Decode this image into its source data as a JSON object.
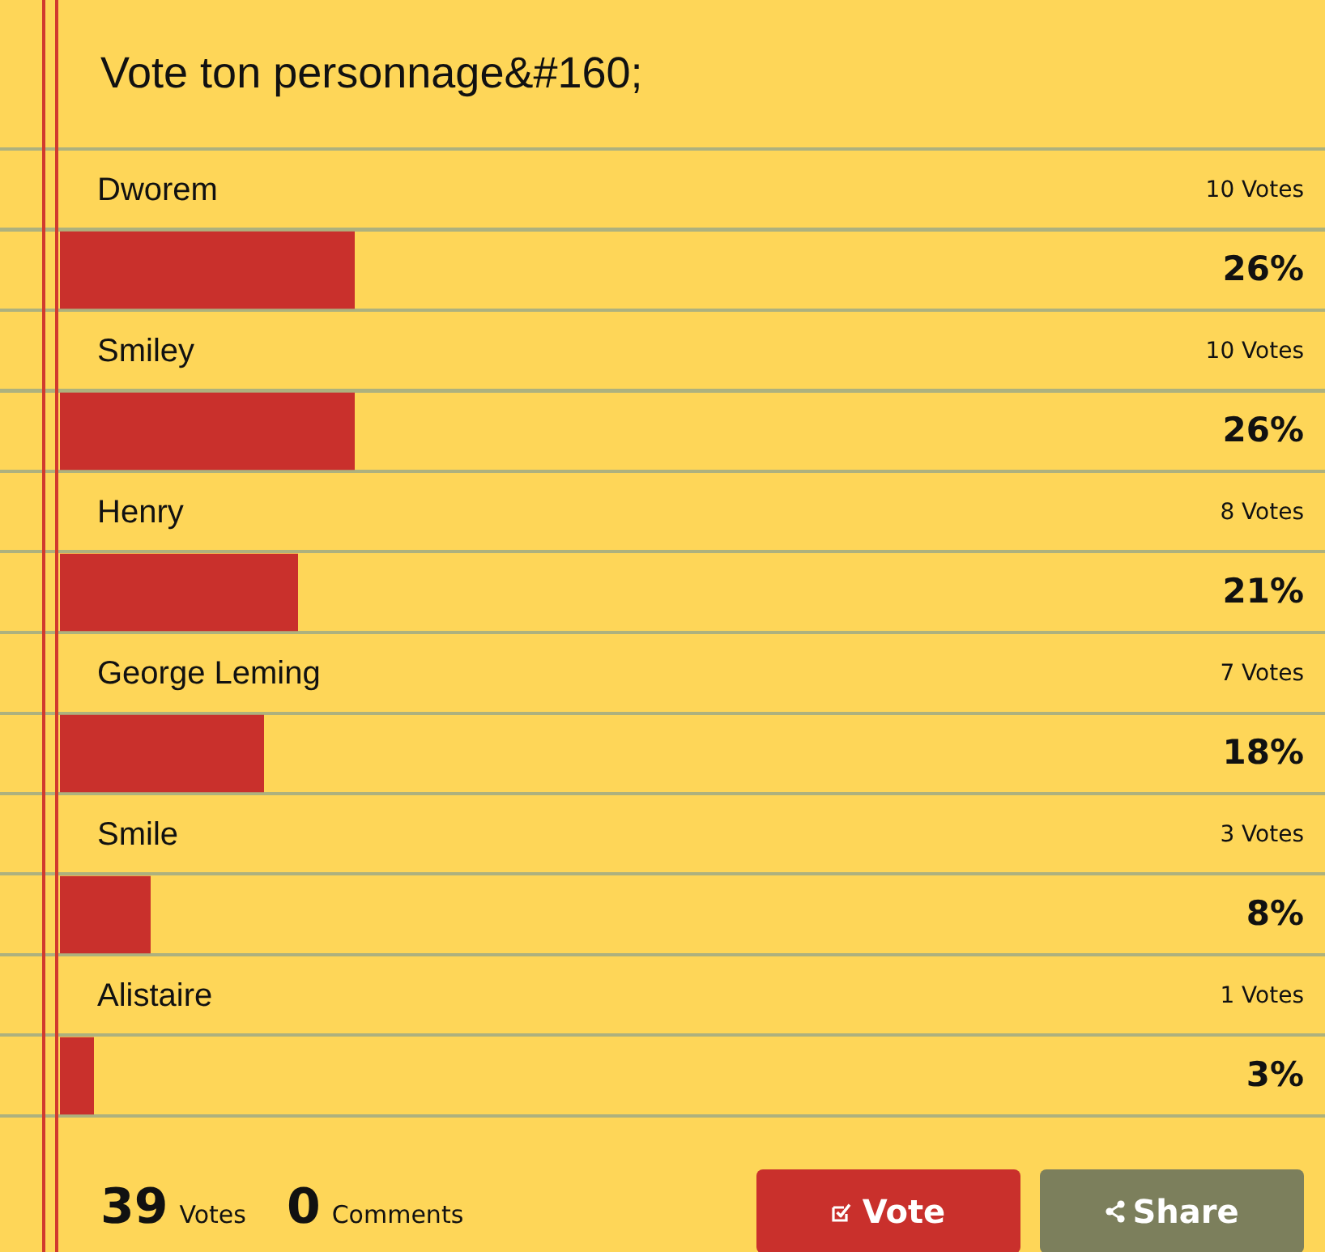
{
  "chart_data": {
    "type": "bar",
    "orientation": "horizontal",
    "title": "Vote ton personnage&#160;",
    "categories": [
      "Dworem",
      "Smiley",
      "Henry",
      "George Leming",
      "Smile",
      "Alistaire"
    ],
    "values": [
      26,
      26,
      21,
      18,
      8,
      3
    ],
    "value_labels": [
      "26%",
      "26%",
      "21%",
      "18%",
      "8%",
      "3%"
    ],
    "color": "#c9302c",
    "tick_labels": "y",
    "annotations": [
      "10 Votes",
      "10 Votes",
      "8 Votes",
      "7 Votes",
      "3 Votes",
      "1 Votes",
      "39 Votes",
      "0 Comments",
      "Vote",
      "Share"
    ]
  }
}
